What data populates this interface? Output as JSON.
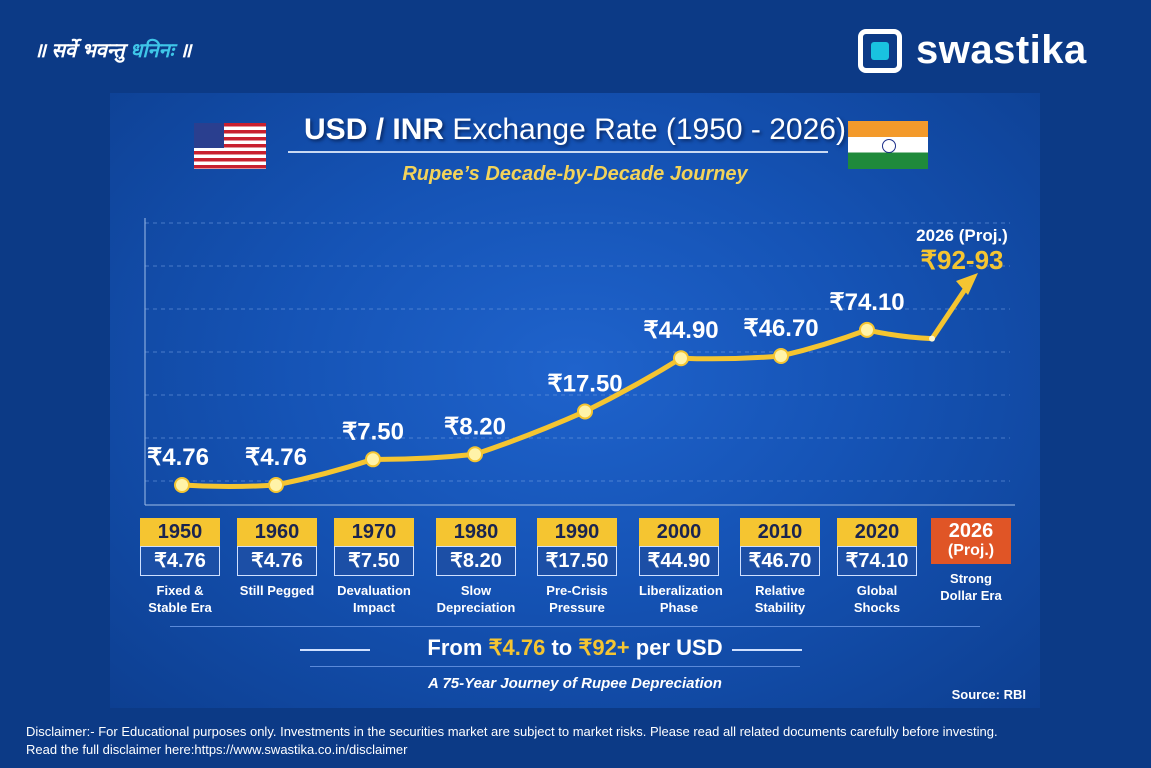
{
  "header": {
    "tagline_pre": "॥ सर्वे भवन्तु ",
    "tagline_hl": "धनिनः",
    "tagline_post": " ॥",
    "brand": "swastika"
  },
  "infographic": {
    "title_bold": "USD / INR",
    "title_rest": " Exchange Rate (1950 - 2026)",
    "subtitle": "Rupee’s Decade-by-Decade Journey",
    "summary_pre": "From ",
    "summary_from": "₹4.76",
    "summary_mid": " to ",
    "summary_to": "₹92+",
    "summary_post": " per USD",
    "journey": "A 75-Year Journey of Rupee Depreciation",
    "source": "Source: RBI"
  },
  "chart_data": {
    "type": "line",
    "categories": [
      "1950",
      "1960",
      "1970",
      "1980",
      "1990",
      "2000",
      "2010",
      "2020"
    ],
    "values": [
      4.76,
      4.76,
      7.5,
      8.2,
      17.5,
      44.9,
      46.7,
      74.1
    ],
    "value_labels": [
      "₹4.76",
      "₹4.76",
      "₹7.50",
      "₹8.20",
      "₹17.50",
      "₹44.90",
      "₹46.70",
      "₹74.10"
    ],
    "descriptions": [
      "Fixed & Stable Era",
      "Still Pegged",
      "Devaluation Impact",
      "Slow Depreciation",
      "Pre-Crisis Pressure",
      "Liberalization Phase",
      "Relative Stability",
      "Global Shocks"
    ],
    "projection": {
      "year": "2026",
      "tag": "(Proj.)",
      "range": "₹92-93",
      "low": 92,
      "high": 93,
      "description": "Strong Dollar Era"
    },
    "grid": true,
    "line_color": "#f5c531"
  },
  "disclaimer": {
    "line1": "Disclaimer:- For Educational purposes only. Investments in the securities market are subject to market risks. Please read all related documents carefully before investing.",
    "line2": "Read the full disclaimer here:https://www.swastika.co.in/disclaimer"
  }
}
